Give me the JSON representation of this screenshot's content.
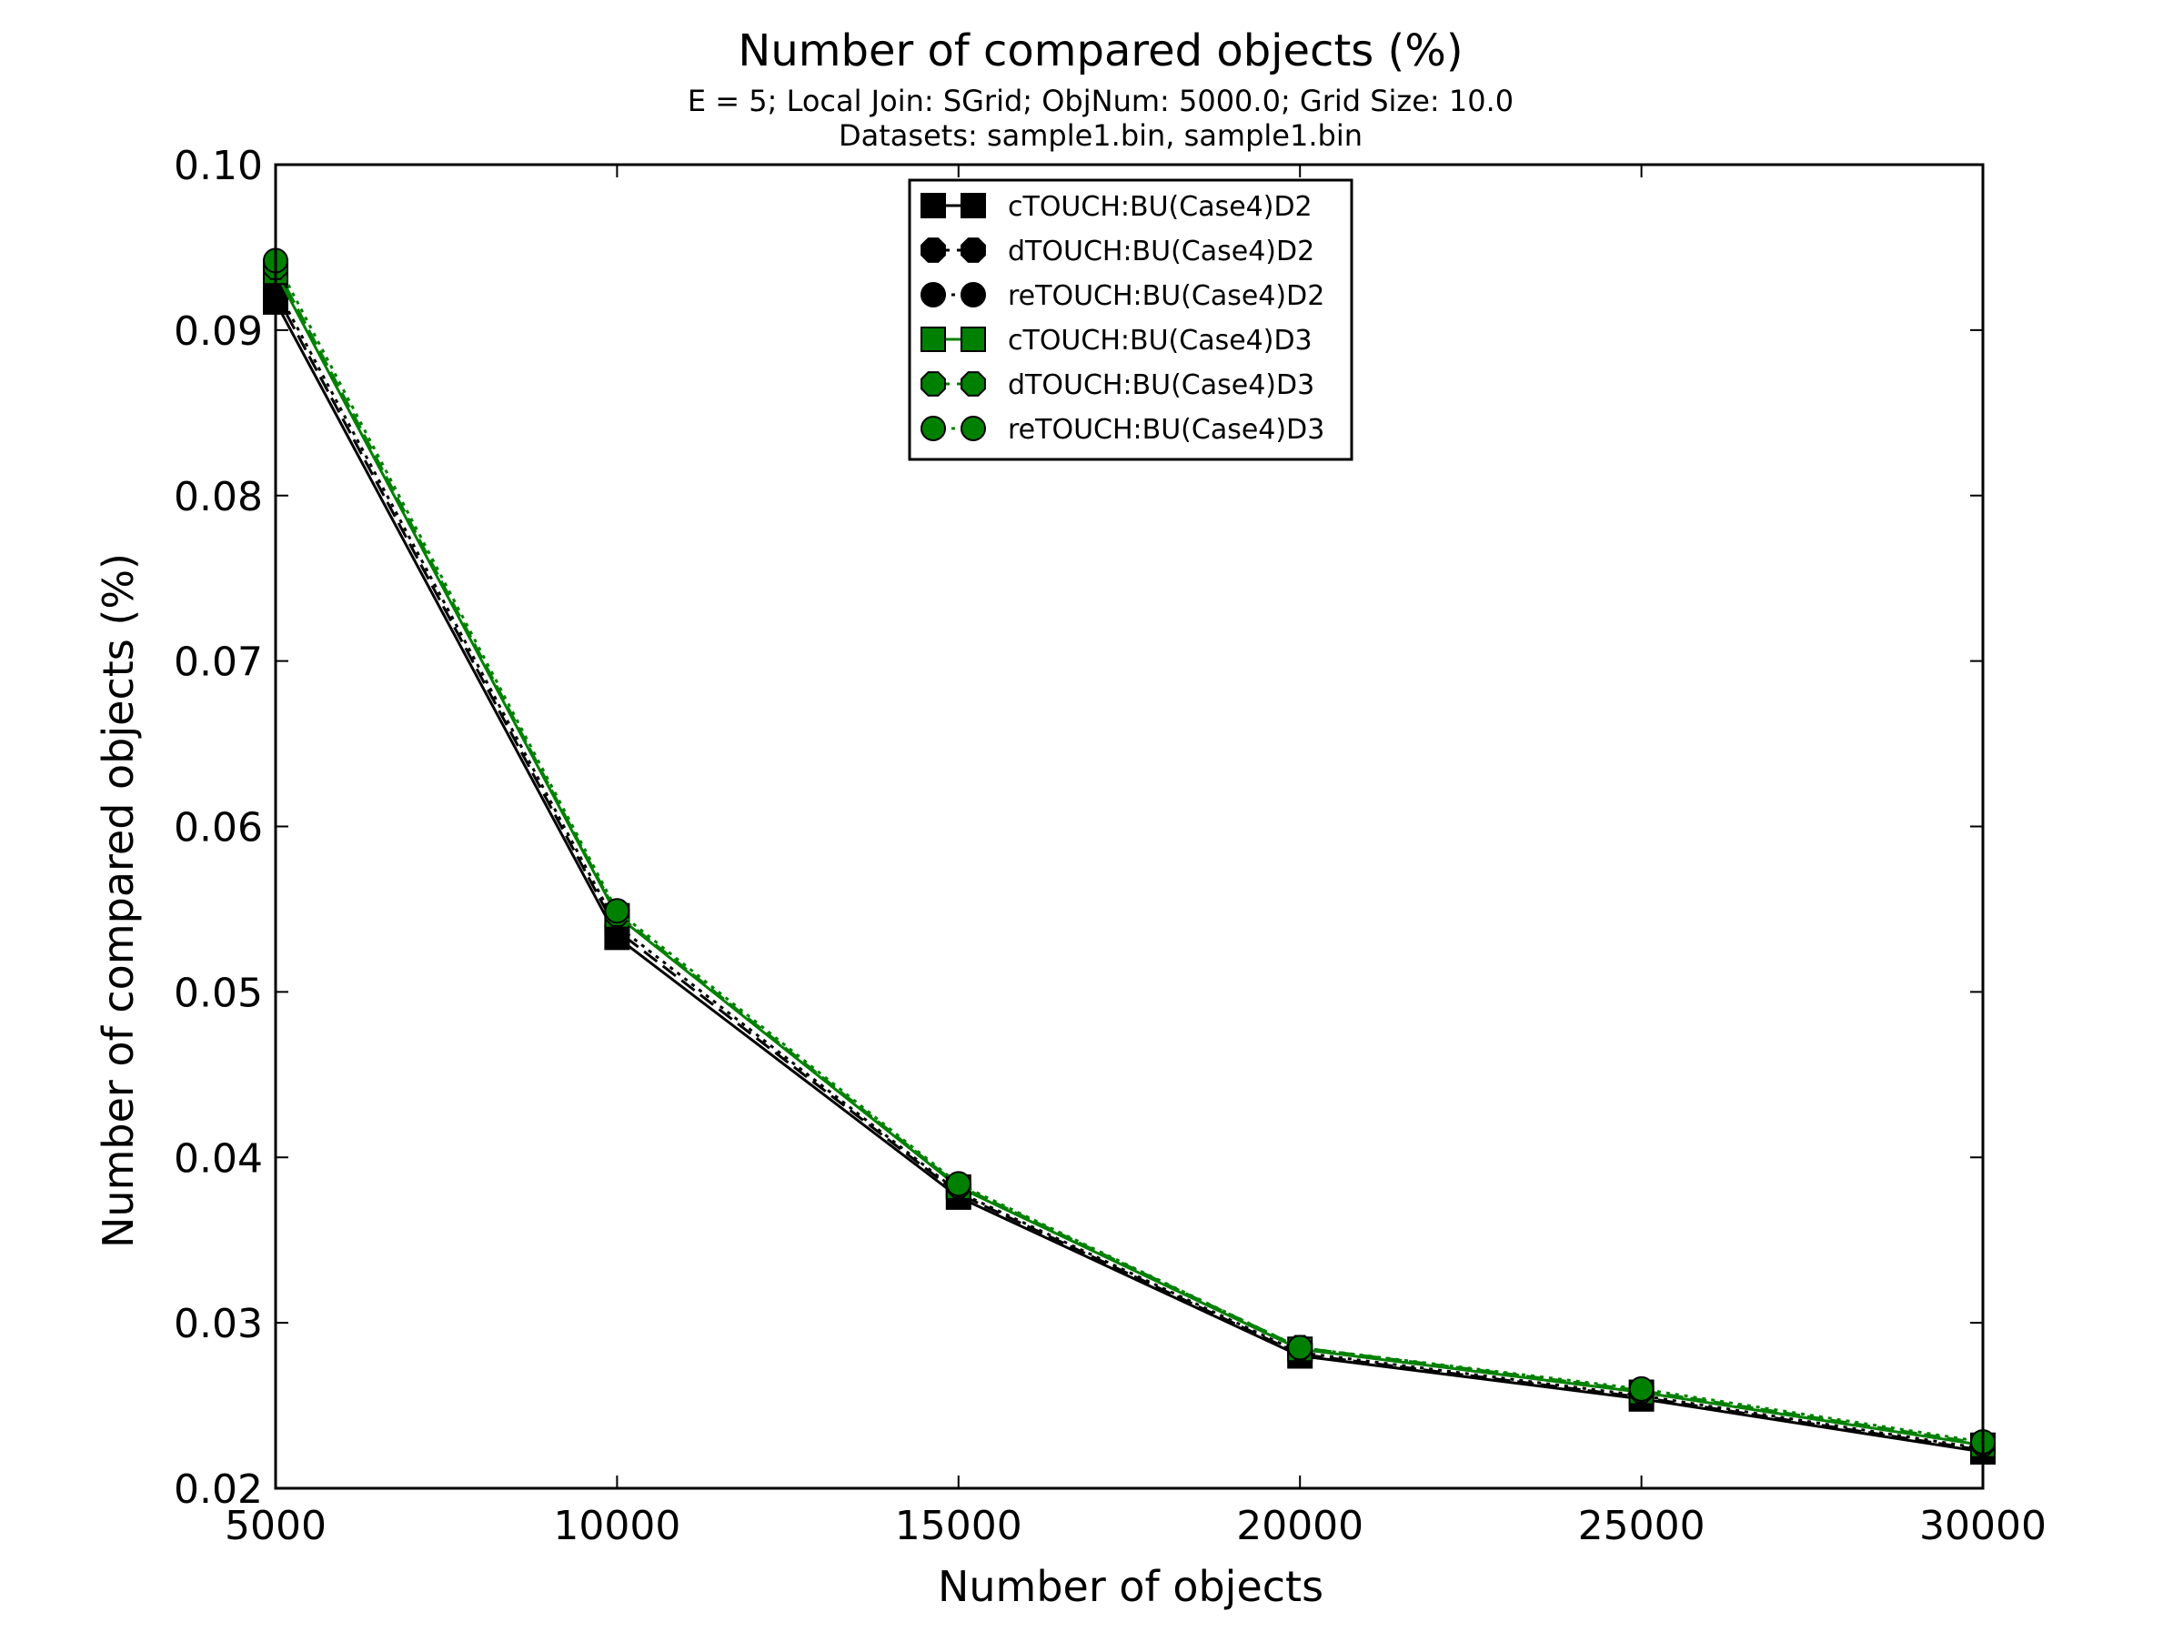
{
  "chart_data": {
    "type": "line",
    "title": "Number of compared objects (%)",
    "subtitle_lines": [
      "E = 5; Local Join: SGrid; ObjNum: 5000.0; Grid Size: 10.0",
      "Datasets: sample1.bin, sample1.bin"
    ],
    "xlabel": "Number of objects",
    "ylabel": "Number of compared objects (%)",
    "xlim": [
      5000,
      30000
    ],
    "ylim": [
      0.02,
      0.1
    ],
    "xticks": [
      5000,
      10000,
      15000,
      20000,
      25000,
      30000
    ],
    "xtick_labels": [
      "5000",
      "10000",
      "15000",
      "20000",
      "25000",
      "30000"
    ],
    "yticks": [
      0.02,
      0.03,
      0.04,
      0.05,
      0.06,
      0.07,
      0.08,
      0.09,
      0.1
    ],
    "ytick_labels": [
      "0.02",
      "0.03",
      "0.04",
      "0.05",
      "0.06",
      "0.07",
      "0.08",
      "0.09",
      "0.10"
    ],
    "grid": false,
    "legend_position": "top-center",
    "x": [
      5000,
      10000,
      15000,
      20000,
      25000,
      30000
    ],
    "series": [
      {
        "name": "cTOUCH:BU(Case4)D2",
        "color": "#000000",
        "marker": "square",
        "linestyle": "solid",
        "values": [
          0.0917,
          0.0533,
          0.0376,
          0.028,
          0.0254,
          0.0222
        ]
      },
      {
        "name": "dTOUCH:BU(Case4)D2",
        "color": "#000000",
        "marker": "octagon",
        "linestyle": "dashed",
        "values": [
          0.0922,
          0.0537,
          0.0378,
          0.0281,
          0.0255,
          0.0223
        ]
      },
      {
        "name": "reTOUCH:BU(Case4)D2",
        "color": "#000000",
        "marker": "circle",
        "linestyle": "dotted",
        "values": [
          0.0926,
          0.054,
          0.0379,
          0.0282,
          0.0256,
          0.0224
        ]
      },
      {
        "name": "cTOUCH:BU(Case4)D3",
        "color": "#008000",
        "marker": "square",
        "linestyle": "solid",
        "values": [
          0.0935,
          0.0546,
          0.0382,
          0.0284,
          0.0258,
          0.0226
        ]
      },
      {
        "name": "dTOUCH:BU(Case4)D3",
        "color": "#008000",
        "marker": "octagon",
        "linestyle": "dashed",
        "values": [
          0.0938,
          0.0547,
          0.0383,
          0.0285,
          0.0259,
          0.0227
        ]
      },
      {
        "name": "reTOUCH:BU(Case4)D3",
        "color": "#008000",
        "marker": "circle",
        "linestyle": "dotted",
        "values": [
          0.0942,
          0.0549,
          0.0384,
          0.0285,
          0.026,
          0.0228
        ]
      }
    ]
  }
}
